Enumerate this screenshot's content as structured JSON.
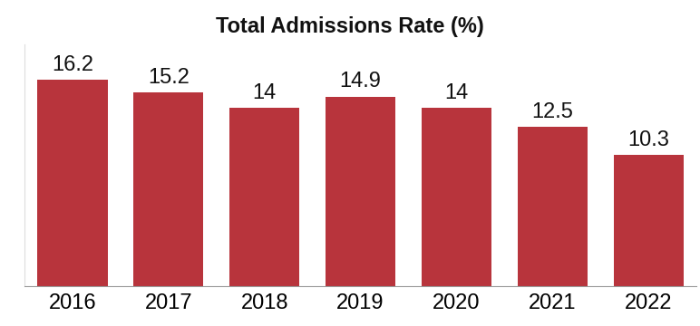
{
  "chart_data": {
    "type": "bar",
    "title": "Total Admissions Rate (%)",
    "categories": [
      "2016",
      "2017",
      "2018",
      "2019",
      "2020",
      "2021",
      "2022"
    ],
    "values": [
      16.2,
      15.2,
      14,
      14.9,
      14,
      12.5,
      10.3
    ],
    "color": "#b8343c",
    "ylim": [
      0,
      19
    ],
    "data_labels": true,
    "tick_labels": "x",
    "grid": false
  }
}
